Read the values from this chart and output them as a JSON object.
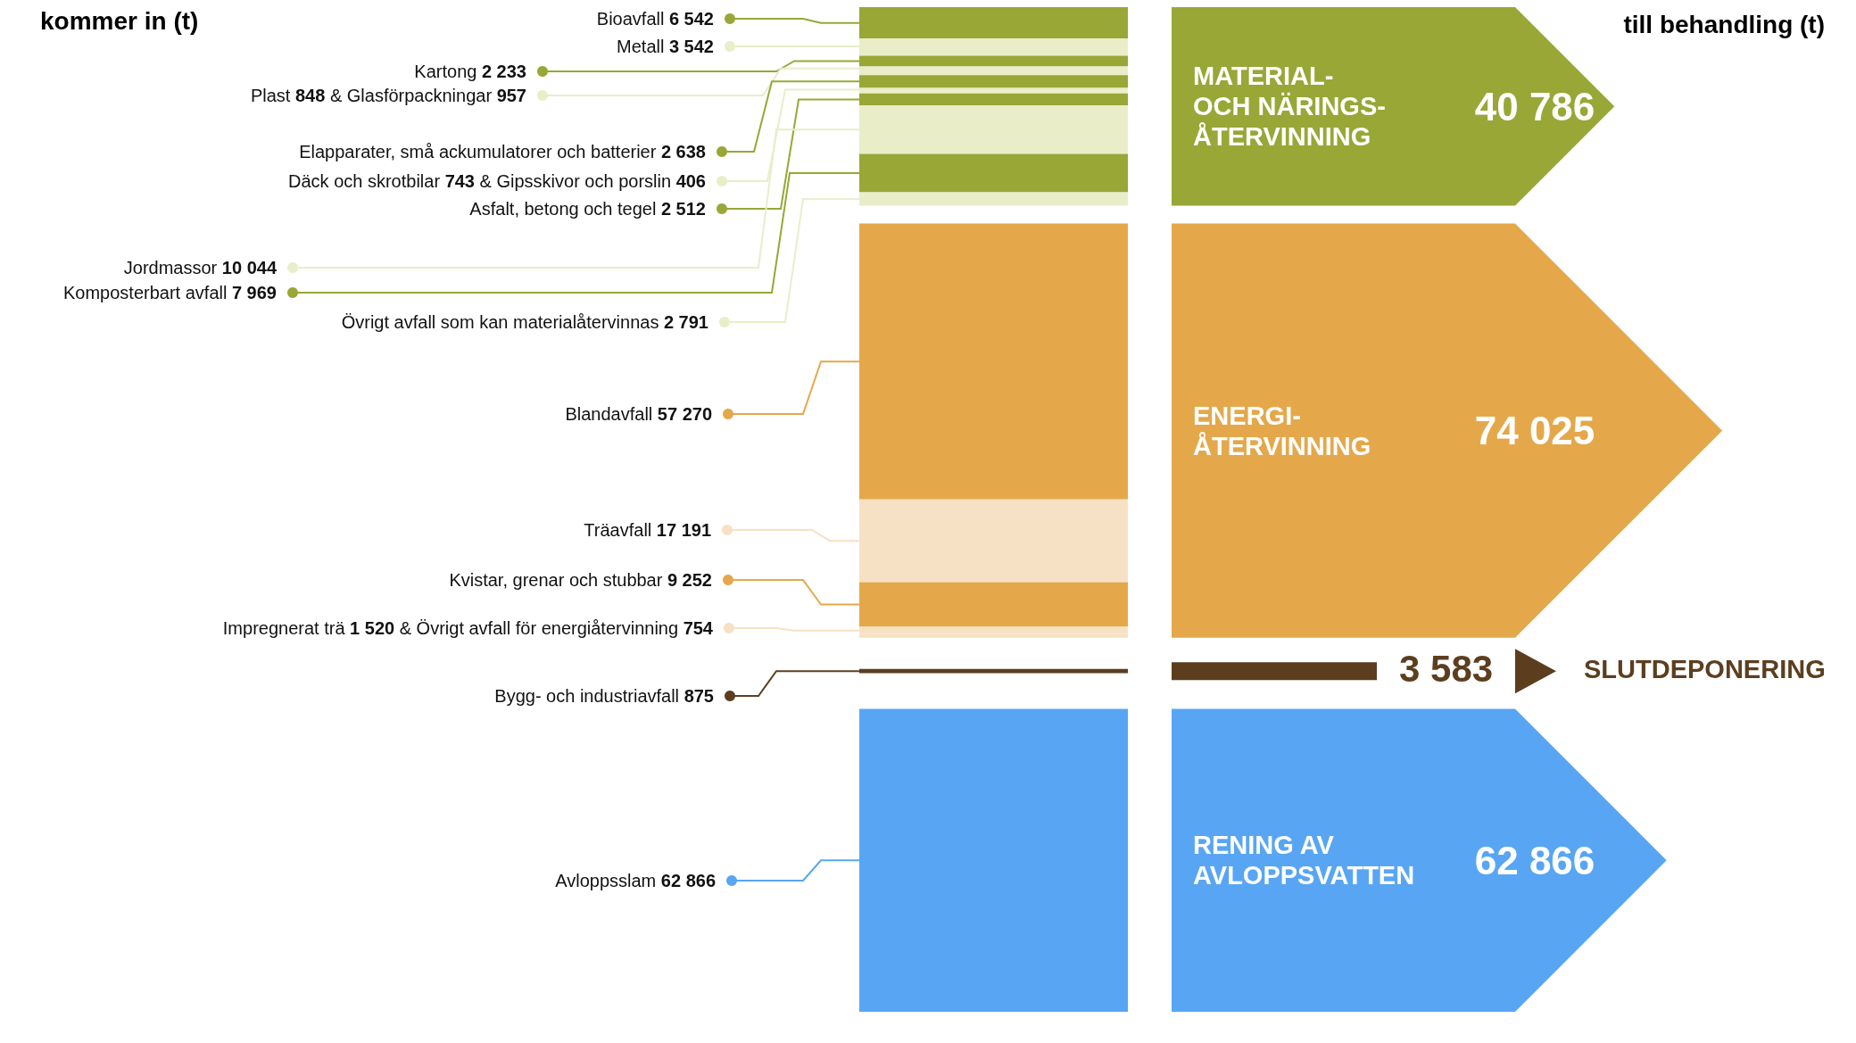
{
  "chart_data": {
    "type": "other",
    "title": "kommer in (t)",
    "subtitle": "till behandling (t)",
    "categories": [
      "Bioavfall",
      "Metall",
      "Kartong",
      "Plast",
      "& Glasförpackningar",
      "Elapparater, små ackumulatorer och batterier",
      "Däck och skrotbilar",
      "& Gipsskivor och porslin",
      "Asfalt, betong och tegel",
      "Jordmassor",
      "Komposterbart avfall",
      "Övrigt avfall som kan materialåtervinnas",
      "Blandavfall",
      "Träavfall",
      "Kvistar, grenar och stubbar",
      "Impregnerat trä",
      "& Övrigt avfall för energiåtervinning",
      "Bygg- och industriavfall",
      "Avloppsslam"
    ],
    "series": [
      {
        "name": "MATERIAL- OCH NÄRINGS- ÅTERVINNING",
        "values": [
          6542,
          3542,
          2233,
          848,
          957,
          2638,
          743,
          406,
          2512,
          10044,
          7969,
          2791,
          null,
          null,
          null,
          null,
          null,
          null,
          null
        ],
        "colors": [
          "#98a736",
          "#e9eec9",
          "#98a736",
          "#e9eec9",
          "#e9eec9",
          "#98a736",
          "#e9eec9",
          "#e9eec9",
          "#98a736",
          "#e9eec9",
          "#98a736",
          "#e9eec9",
          null,
          null,
          null,
          null,
          null,
          null,
          null
        ]
      },
      {
        "name": "ENERGI- ÅTERVINNING",
        "values": [
          null,
          null,
          null,
          null,
          null,
          null,
          null,
          null,
          null,
          null,
          null,
          null,
          57270,
          17191,
          9252,
          1520,
          754,
          null,
          null
        ],
        "colors": [
          null,
          null,
          null,
          null,
          null,
          null,
          null,
          null,
          null,
          null,
          null,
          null,
          "#e4a84b",
          "#f7e1c4",
          "#e4a84b",
          "#f7e1c4",
          "#f7e1c4",
          null,
          null
        ]
      },
      {
        "name": "SLUTDEPONERING",
        "color": "#5c3e1f",
        "values": [
          null,
          null,
          null,
          null,
          null,
          null,
          null,
          null,
          null,
          null,
          null,
          null,
          null,
          null,
          null,
          null,
          null,
          875,
          null
        ],
        "colors": [
          null,
          null,
          null,
          null,
          null,
          null,
          null,
          null,
          null,
          null,
          null,
          null,
          null,
          null,
          null,
          null,
          null,
          "#5c3e1f",
          null
        ]
      },
      {
        "name": "RENING AV AVLOPPSVATTEN",
        "values": [
          null,
          null,
          null,
          null,
          null,
          null,
          null,
          null,
          null,
          null,
          null,
          null,
          null,
          null,
          null,
          null,
          null,
          null,
          62866
        ],
        "colors": [
          null,
          null,
          null,
          null,
          null,
          null,
          null,
          null,
          null,
          null,
          null,
          null,
          null,
          null,
          null,
          null,
          null,
          null,
          "#58a6f3"
        ]
      }
    ],
    "totals": [
      "40 786",
      "74 025",
      "3 583",
      "62 866"
    ],
    "data_labels": true
  }
}
